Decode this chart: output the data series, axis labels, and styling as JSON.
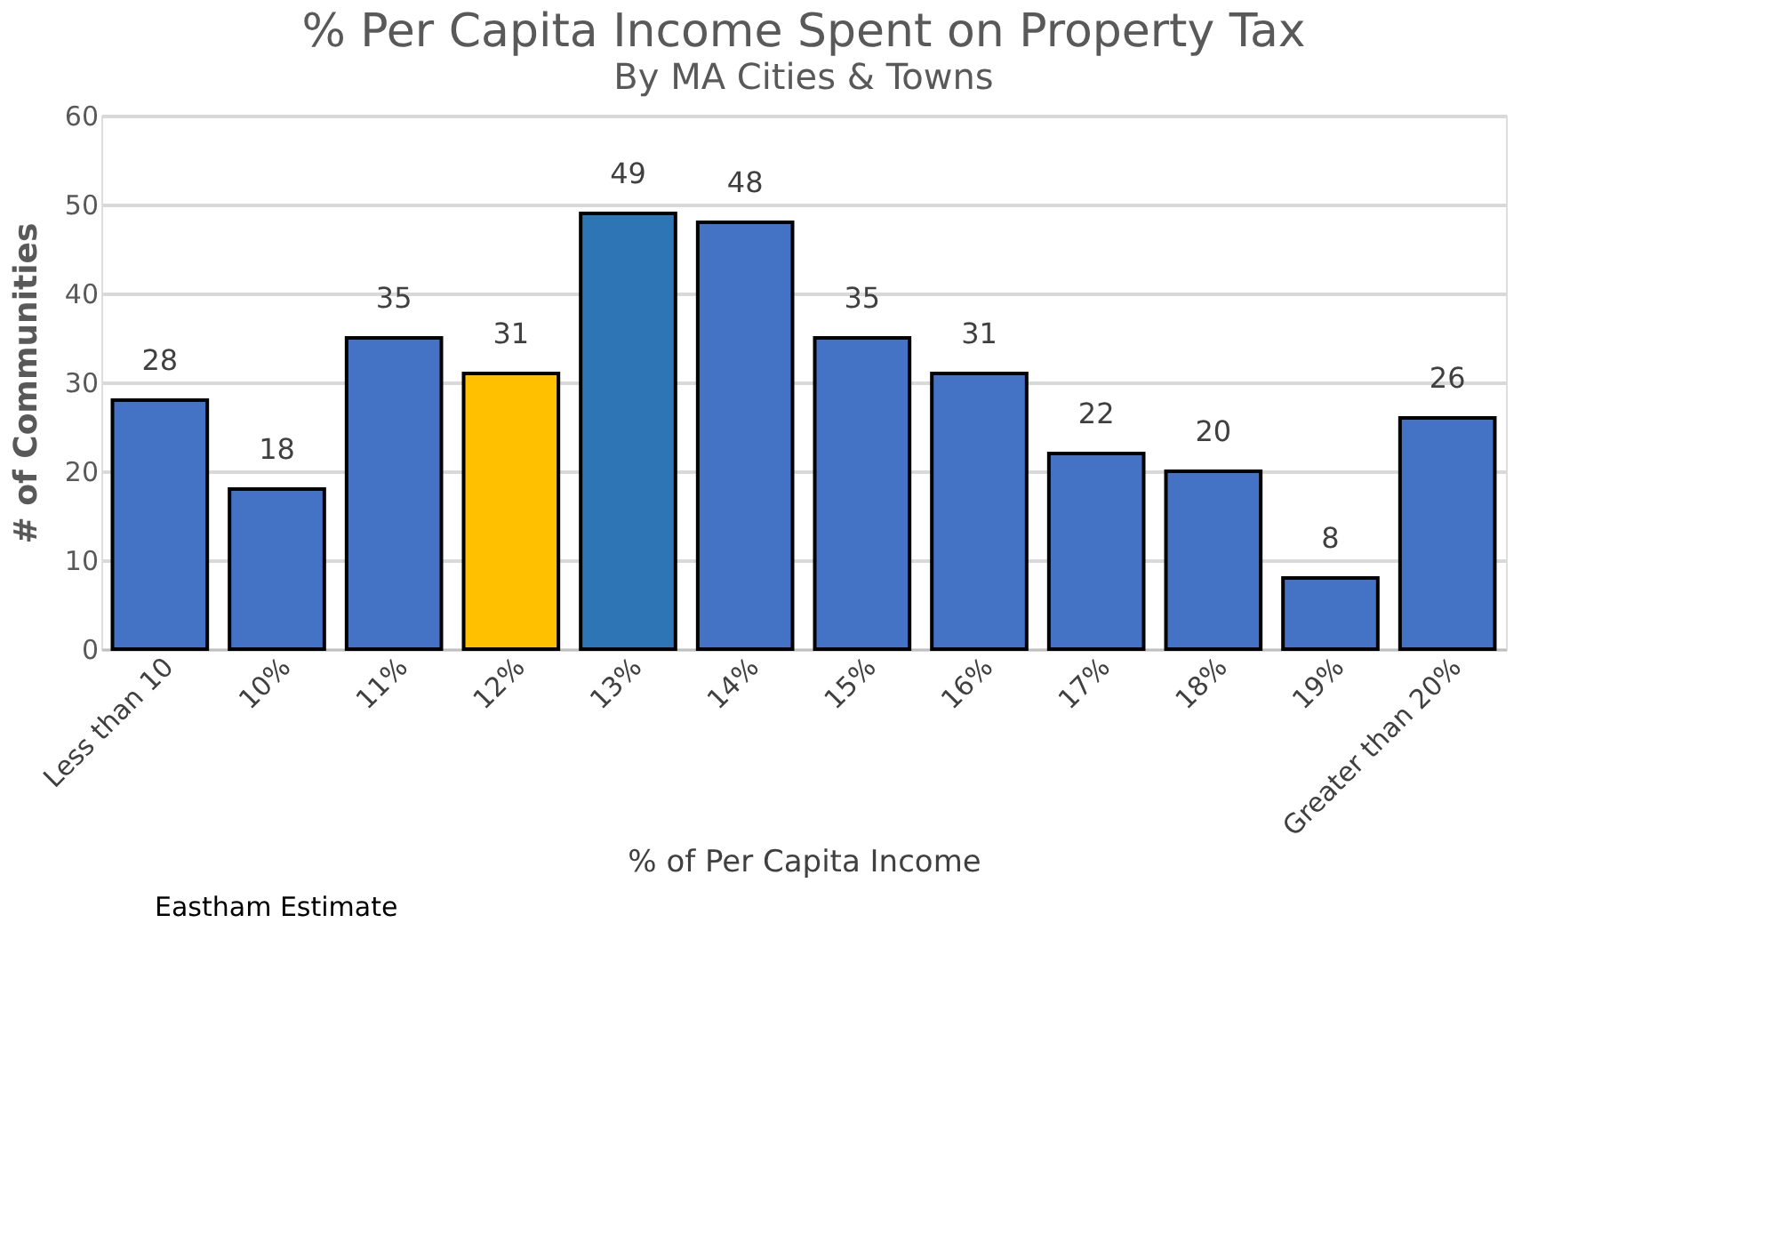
{
  "chart_data": {
    "type": "bar",
    "title": "% Per Capita Income Spent on Property Tax",
    "subtitle": "By MA Cities & Towns",
    "xlabel": "% of Per Capita Income",
    "ylabel": "# of Communities",
    "categories": [
      "Less than 10",
      "10%",
      "11%",
      "12%",
      "13%",
      "14%",
      "15%",
      "16%",
      "17%",
      "18%",
      "19%",
      "Greater than 20%"
    ],
    "values": [
      28,
      18,
      35,
      31,
      49,
      48,
      35,
      31,
      22,
      20,
      8,
      26
    ],
    "colors": [
      "#4472c4",
      "#4472c4",
      "#4472c4",
      "#ffc000",
      "#2e75b6",
      "#4472c4",
      "#4472c4",
      "#4472c4",
      "#4472c4",
      "#4472c4",
      "#4472c4",
      "#4472c4"
    ],
    "ylim": [
      0,
      60
    ],
    "yticks": [
      0,
      10,
      20,
      30,
      40,
      50,
      60
    ],
    "grid": "y",
    "data_labels": true,
    "annotations": [
      "Eastham Estimate"
    ]
  }
}
